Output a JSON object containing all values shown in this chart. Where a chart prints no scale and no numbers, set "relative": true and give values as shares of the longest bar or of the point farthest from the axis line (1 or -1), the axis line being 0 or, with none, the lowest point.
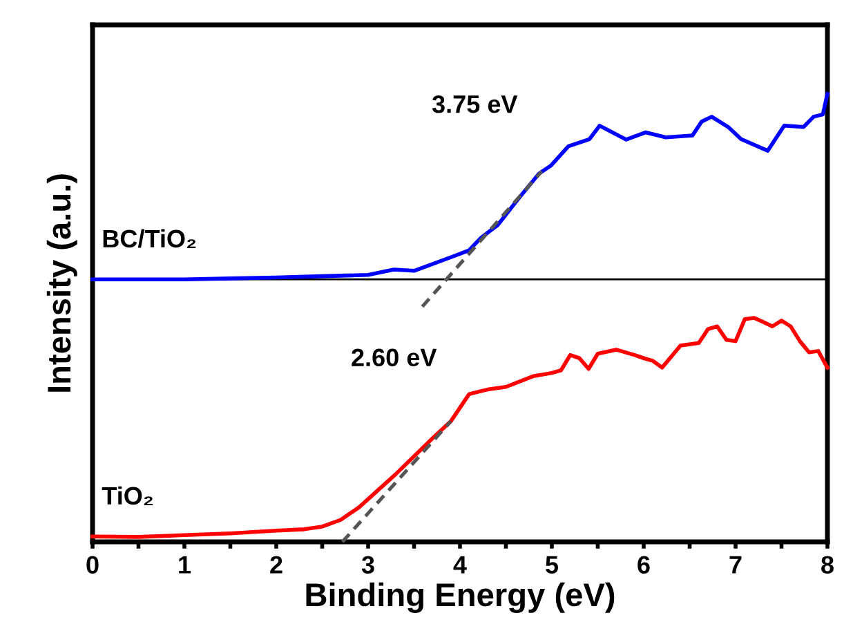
{
  "chart_data": {
    "type": "line",
    "relative": true,
    "xlabel": "Binding Energy (eV)",
    "ylabel": "Intensity (a.u.)",
    "xlim": [
      0,
      8
    ],
    "xticks": [
      0,
      {
        "value": 0.5,
        "label": null
      },
      1,
      {
        "value": 1.5,
        "label": null
      },
      2,
      {
        "value": 2.5,
        "label": null
      },
      3,
      {
        "value": 3.5,
        "label": null
      },
      4,
      {
        "value": 4.5,
        "label": null
      },
      5,
      {
        "value": 5.5,
        "label": null
      },
      6,
      {
        "value": 6.5,
        "label": null
      },
      7,
      {
        "value": 7.5,
        "label": null
      },
      8
    ],
    "tick_labels": "x",
    "grid": false,
    "legend": false,
    "marker": "none",
    "line_style": "solid",
    "series": [
      {
        "name": "BC/TiO₂",
        "color": "#0000ff",
        "x": [
          0,
          0.5,
          1,
          1.5,
          2,
          2.5,
          3.0,
          3.28,
          3.5,
          3.91,
          4.1,
          4.23,
          4.41,
          4.64,
          4.86,
          4.99,
          5.18,
          5.41,
          5.52,
          5.81,
          6.02,
          6.24,
          6.53,
          6.63,
          6.74,
          6.92,
          7.06,
          7.35,
          7.53,
          7.74,
          7.85,
          7.95,
          8.0
        ],
        "values": [
          0.586,
          0.586,
          0.586,
          0.588,
          0.59,
          0.593,
          0.596,
          0.608,
          0.605,
          0.636,
          0.651,
          0.679,
          0.707,
          0.767,
          0.822,
          0.84,
          0.883,
          0.899,
          0.929,
          0.898,
          0.914,
          0.903,
          0.907,
          0.938,
          0.949,
          0.926,
          0.899,
          0.873,
          0.929,
          0.926,
          0.949,
          0.954,
          1.0
        ]
      },
      {
        "name": "TiO₂",
        "color": "#ff0000",
        "x": [
          0,
          0.5,
          1,
          1.5,
          2,
          2.3,
          2.5,
          2.7,
          2.9,
          3.1,
          3.3,
          3.5,
          3.7,
          3.9,
          4.1,
          4.3,
          4.5,
          4.8,
          5.0,
          5.1,
          5.2,
          5.3,
          5.4,
          5.5,
          5.7,
          5.9,
          6.0,
          6.1,
          6.2,
          6.4,
          6.6,
          6.7,
          6.8,
          6.9,
          7.0,
          7.1,
          7.2,
          7.3,
          7.4,
          7.5,
          7.6,
          7.7,
          7.8,
          7.9,
          8.0
        ],
        "values": [
          0.012,
          0.011,
          0.015,
          0.019,
          0.025,
          0.028,
          0.034,
          0.049,
          0.077,
          0.114,
          0.151,
          0.191,
          0.231,
          0.269,
          0.33,
          0.34,
          0.346,
          0.37,
          0.377,
          0.383,
          0.417,
          0.41,
          0.386,
          0.42,
          0.429,
          0.417,
          0.41,
          0.404,
          0.389,
          0.438,
          0.444,
          0.475,
          0.481,
          0.451,
          0.448,
          0.497,
          0.5,
          0.491,
          0.481,
          0.494,
          0.481,
          0.448,
          0.423,
          0.426,
          0.389
        ]
      },
      {
        "type": "line",
        "line_style": "dashed",
        "color": "#555555",
        "x": [
          3.59,
          4.89
        ],
        "values": [
          0.525,
          0.827
        ]
      },
      {
        "type": "line",
        "line_style": "dashed",
        "color": "#555555",
        "x": [
          2.72,
          3.9
        ],
        "values": [
          0.0,
          0.269
        ]
      }
    ],
    "ref_lines": [
      {
        "axis": "y",
        "value": 0.586,
        "color": "#000000"
      }
    ],
    "annotations": [
      "3.75 eV",
      "2.60 eV"
    ]
  }
}
